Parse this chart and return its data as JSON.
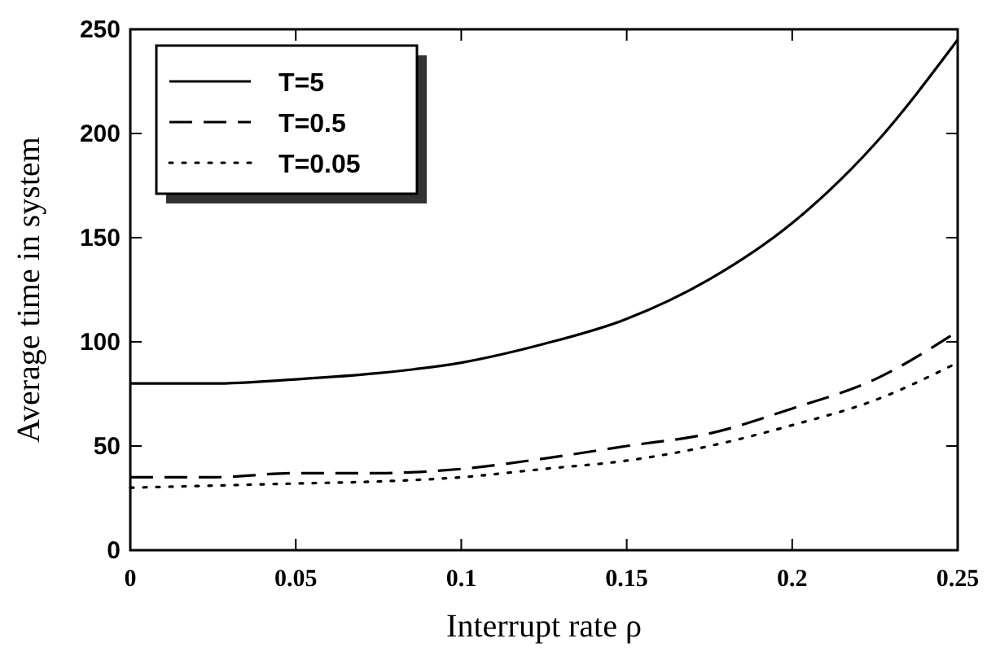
{
  "chart_data": {
    "type": "line",
    "xlabel": "Interrupt rate  ρ",
    "ylabel": "Average time in system",
    "x": [
      0,
      0.025,
      0.05,
      0.075,
      0.1,
      0.125,
      0.15,
      0.175,
      0.2,
      0.225,
      0.25
    ],
    "series": [
      {
        "name": "T=5",
        "color": "#000000",
        "line_style": "solid",
        "values": [
          80,
          80,
          82,
          85,
          90,
          99,
          111,
          130,
          157,
          195,
          245
        ]
      },
      {
        "name": "T=0.5",
        "color": "#000000",
        "line_style": "dashed",
        "values": [
          35,
          35,
          37,
          37,
          39,
          44,
          50,
          56,
          68,
          82,
          105
        ]
      },
      {
        "name": "T=0.05",
        "color": "#000000",
        "line_style": "dotted",
        "values": [
          30,
          31,
          32,
          33,
          35,
          39,
          43,
          50,
          60,
          72,
          90
        ]
      }
    ],
    "xlim": [
      0,
      0.25
    ],
    "xticks": [
      0,
      0.05,
      0.1,
      0.15,
      0.2,
      0.25
    ],
    "ylim": [
      0,
      250
    ],
    "yticks": [
      0,
      50,
      100,
      150,
      200,
      250
    ],
    "legend": "top left",
    "grid": false
  }
}
